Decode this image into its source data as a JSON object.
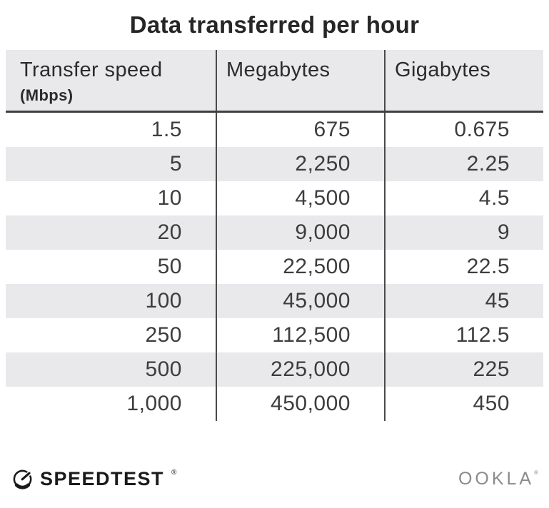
{
  "title": "Data transferred per hour",
  "table": {
    "columns": [
      {
        "label": "Transfer speed",
        "sublabel": "(Mbps)"
      },
      {
        "label": "Megabytes"
      },
      {
        "label": "Gigabytes"
      }
    ],
    "rows": [
      [
        "1.5",
        "675",
        "0.675"
      ],
      [
        "5",
        "2,250",
        "2.25"
      ],
      [
        "10",
        "4,500",
        "4.5"
      ],
      [
        "20",
        "9,000",
        "9"
      ],
      [
        "50",
        "22,500",
        "22.5"
      ],
      [
        "100",
        "45,000",
        "45"
      ],
      [
        "250",
        "112,500",
        "112.5"
      ],
      [
        "500",
        "225,000",
        "225"
      ],
      [
        "1,000",
        "450,000",
        "450"
      ]
    ]
  },
  "chart_data": {
    "type": "table",
    "title": "Data transferred per hour",
    "columns": [
      "Transfer speed (Mbps)",
      "Megabytes",
      "Gigabytes"
    ],
    "rows": [
      [
        1.5,
        675,
        0.675
      ],
      [
        5,
        2250,
        2.25
      ],
      [
        10,
        4500,
        4.5
      ],
      [
        20,
        9000,
        9
      ],
      [
        50,
        22500,
        22.5
      ],
      [
        100,
        45000,
        45
      ],
      [
        250,
        112500,
        112.5
      ],
      [
        500,
        225000,
        225
      ],
      [
        1000,
        450000,
        450
      ]
    ]
  },
  "footer": {
    "speedtest_label": "SPEEDTEST",
    "speedtest_trademark": "®",
    "ookla_label": "OOKLA",
    "ookla_trademark": "®"
  },
  "colors": {
    "header_bg": "#e9e9ec",
    "row_alt_bg": "#e9e9ec",
    "divider": "#4a4a4a",
    "header_underline": "#3f3f3f",
    "title_text": "#262626",
    "cell_text": "#3d3d3d",
    "ookla_gray": "#8b8b8b",
    "logo_black": "#1a1a1a"
  }
}
